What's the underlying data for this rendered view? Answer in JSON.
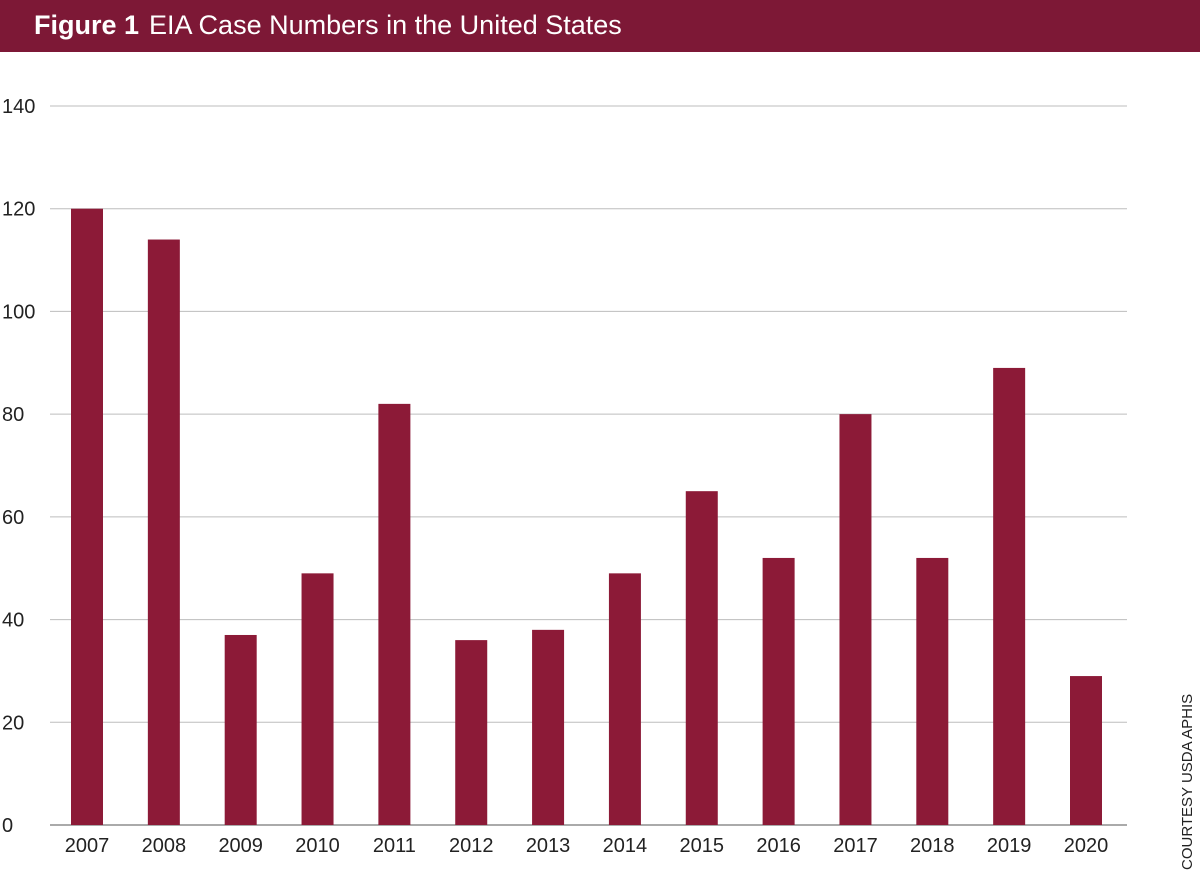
{
  "header": {
    "figure_label": "Figure 1",
    "title": "EIA Case Numbers in the United States"
  },
  "credit": "COURTESY USDA APHIS",
  "colors": {
    "header": "#7d1836",
    "bar": "#8c1a37",
    "grid": "#bdbdbd"
  },
  "chart_data": {
    "type": "bar",
    "title": "EIA Case Numbers in the United States",
    "categories": [
      "2007",
      "2008",
      "2009",
      "2010",
      "2011",
      "2012",
      "2013",
      "2014",
      "2015",
      "2016",
      "2017",
      "2018",
      "2019",
      "2020"
    ],
    "values": [
      120,
      114,
      37,
      49,
      82,
      36,
      38,
      49,
      65,
      52,
      80,
      52,
      89,
      29
    ],
    "ylim": [
      0,
      140
    ],
    "yticks": [
      0,
      20,
      40,
      60,
      80,
      100,
      120,
      140
    ],
    "grid": true,
    "xlabel": "",
    "ylabel": ""
  }
}
